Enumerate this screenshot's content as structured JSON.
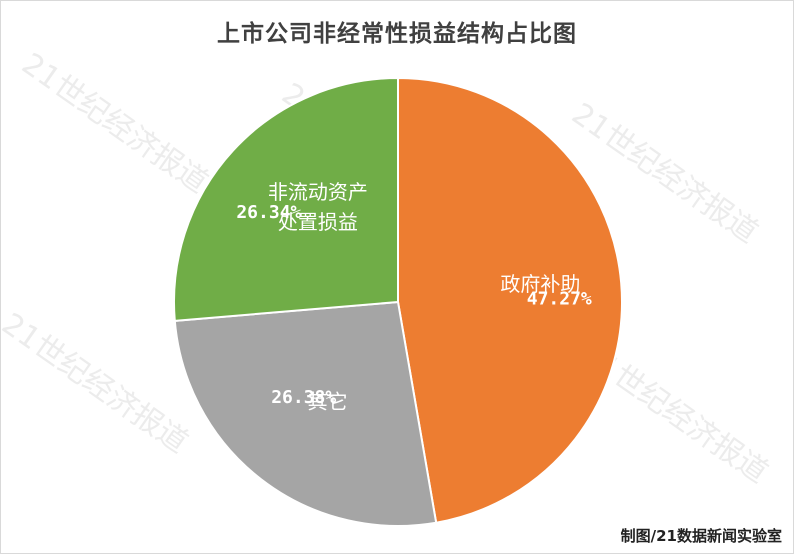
{
  "chart_data": {
    "type": "pie",
    "title": "上市公司非经常性损益结构占比图",
    "slices": [
      {
        "name": "政府补助",
        "value": 47.27,
        "label": "47.27%",
        "color": "#ED7D31"
      },
      {
        "name": "其它",
        "value": 26.38,
        "label": "26.38%",
        "color": "#A5A5A5"
      },
      {
        "name_lines": [
          "非流动资产",
          "处置损益"
        ],
        "value": 26.34,
        "label": "26.34%",
        "color": "#70AD47"
      }
    ],
    "start_angle_deg": 0,
    "direction": "clockwise"
  },
  "watermark": "21世纪经济报道",
  "credit": "制图/21数据新闻实验室"
}
